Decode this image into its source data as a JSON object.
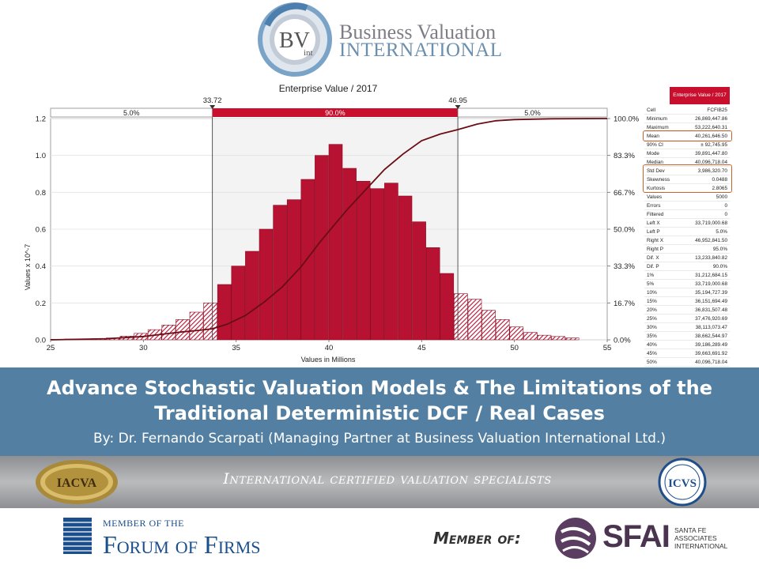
{
  "header": {
    "logo_line1": "Business Valuation",
    "logo_line2": "INTERNATIONAL",
    "logo_mark": "BV",
    "logo_mark_sub": "int",
    "logo_icon": "bvi-ring-logo-icon"
  },
  "chart_data": {
    "type": "bar",
    "title": "Enterprise Value / 2017",
    "xlabel": "Values in Millions",
    "ylabel": "Values x 10^-7",
    "xlim": [
      25,
      55
    ],
    "ylim": [
      0,
      1.2
    ],
    "x_ticks": [
      "25",
      "30",
      "35",
      "40",
      "45",
      "50",
      "55"
    ],
    "y_ticks": [
      "0.0",
      "0.2",
      "0.4",
      "0.6",
      "0.8",
      "1.0",
      "1.2"
    ],
    "y2_ticks": [
      "0.0%",
      "16.7%",
      "33.3%",
      "50.0%",
      "66.7%",
      "83.3%",
      "100.0%"
    ],
    "bin_width": 0.75,
    "bins_start": [
      25,
      25.75,
      26.5,
      27.25,
      28,
      28.75,
      29.5,
      30.25,
      31,
      31.75,
      32.5,
      33.25,
      34,
      34.75,
      35.5,
      36.25,
      37,
      37.75,
      38.5,
      39.25,
      40,
      40.75,
      41.5,
      42.25,
      43,
      43.75,
      44.5,
      45.25,
      46,
      46.75,
      47.5,
      48.25,
      49,
      49.75,
      50.5,
      51.25,
      52,
      52.75
    ],
    "values": [
      0.003,
      0.004,
      0.005,
      0.006,
      0.01,
      0.02,
      0.035,
      0.055,
      0.08,
      0.11,
      0.15,
      0.2,
      0.3,
      0.4,
      0.48,
      0.6,
      0.73,
      0.76,
      0.87,
      1.0,
      1.06,
      0.93,
      0.86,
      0.82,
      0.85,
      0.78,
      0.64,
      0.5,
      0.36,
      0.25,
      0.22,
      0.16,
      0.11,
      0.07,
      0.04,
      0.025,
      0.018,
      0.01
    ],
    "cumulative_x": [
      25,
      28,
      30,
      31,
      32,
      33,
      33.72,
      34.5,
      35.5,
      36.5,
      37.5,
      38.5,
      39.5,
      40.1,
      41,
      42,
      43,
      44,
      45,
      46,
      46.95,
      48,
      49,
      50,
      52,
      55
    ],
    "cumulative_y": [
      0.0,
      0.005,
      0.015,
      0.025,
      0.035,
      0.043,
      0.05,
      0.07,
      0.11,
      0.17,
      0.24,
      0.33,
      0.44,
      0.5,
      0.59,
      0.68,
      0.77,
      0.84,
      0.9,
      0.93,
      0.95,
      0.975,
      0.99,
      0.995,
      0.999,
      1.0
    ],
    "delimiters": {
      "left_x": "33.72",
      "right_x": "46.95",
      "left_value": 33.72,
      "right_value": 46.95
    },
    "band_labels": {
      "left": "5.0%",
      "middle": "90.0%",
      "right": "5.0%"
    },
    "colors": {
      "bar": "#b81233",
      "band": "#c8102e",
      "curve": "#6b0d14"
    }
  },
  "stats": {
    "header": "Enterprise Value / 2017",
    "rows": [
      {
        "label": "Cell",
        "value": "FCFIB25"
      },
      {
        "label": "Minimum",
        "value": "26,869,447.86"
      },
      {
        "label": "Maximum",
        "value": "53,222,640.31"
      },
      {
        "label": "Mean",
        "value": "40,261,646.50"
      },
      {
        "label": "90% CI",
        "value": "± 92,745.95"
      },
      {
        "label": "Mode",
        "value": "39,891,447.80"
      },
      {
        "label": "Median",
        "value": "40,096,718.04"
      },
      {
        "label": "Std Dev",
        "value": "3,986,320.70"
      },
      {
        "label": "Skewness",
        "value": "0.0488"
      },
      {
        "label": "Kurtosis",
        "value": "2.8065"
      },
      {
        "label": "Values",
        "value": "5000"
      },
      {
        "label": "Errors",
        "value": "0"
      },
      {
        "label": "Filtered",
        "value": "0"
      },
      {
        "label": "Left X",
        "value": "33,719,000.68"
      },
      {
        "label": "Left P",
        "value": "5.0%"
      },
      {
        "label": "Right X",
        "value": "46,952,841.50"
      },
      {
        "label": "Right P",
        "value": "95.0%"
      },
      {
        "label": "Dif. X",
        "value": "13,233,840.82"
      },
      {
        "label": "Dif. P",
        "value": "90.0%"
      },
      {
        "label": "1%",
        "value": "31,212,684.15"
      },
      {
        "label": "5%",
        "value": "33,719,000.68"
      },
      {
        "label": "10%",
        "value": "35,194,727.39"
      },
      {
        "label": "15%",
        "value": "36,151,694.49"
      },
      {
        "label": "20%",
        "value": "36,831,507.48"
      },
      {
        "label": "25%",
        "value": "37,476,920.69"
      },
      {
        "label": "30%",
        "value": "38,113,073.47"
      },
      {
        "label": "35%",
        "value": "38,662,544.97"
      },
      {
        "label": "40%",
        "value": "39,186,289.49"
      },
      {
        "label": "45%",
        "value": "39,663,691.92"
      },
      {
        "label": "50%",
        "value": "40,096,718.04"
      }
    ]
  },
  "banner": {
    "title_line1": "Advance Stochastic Valuation Models & The Limitations of the",
    "title_line2": "Traditional Deterministic DCF / Real Cases",
    "byline": "By: Dr. Fernando Scarpati (Managing Partner at Business Valuation International Ltd.)"
  },
  "badges": {
    "tagline": "International certified valuation specialists",
    "left_badge": "IACVA",
    "right_badge": "ICVS"
  },
  "footer": {
    "fof_line1": "MEMBER OF THE",
    "fof_line2": "Forum of Firms",
    "member_of": "Member of:",
    "sfai": "SFAI",
    "sfai_sub1": "SANTA FE",
    "sfai_sub2": "ASSOCIATES",
    "sfai_sub3": "INTERNATIONAL"
  }
}
